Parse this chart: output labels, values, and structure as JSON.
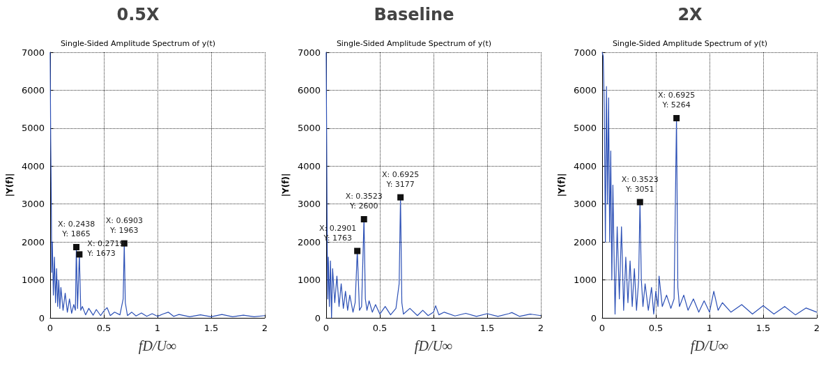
{
  "chart_data": [
    {
      "type": "line",
      "title": "0.5X",
      "subtitle": "Single-Sided Amplitude Spectrum of y(t)",
      "xlabel": "fD/U∞",
      "ylabel": "|Y(f)|",
      "xlim": [
        0,
        2
      ],
      "xticks": [
        0,
        0.5,
        1,
        1.5,
        2
      ],
      "ylim": [
        0,
        7000
      ],
      "yticks": [
        0,
        1000,
        2000,
        3000,
        4000,
        5000,
        6000,
        7000
      ],
      "grid": true,
      "marker": "none",
      "series": [
        {
          "color": "#2b4fb5",
          "x": [
            0,
            0.005,
            0.01,
            0.015,
            0.02,
            0.03,
            0.04,
            0.05,
            0.06,
            0.07,
            0.08,
            0.09,
            0.1,
            0.12,
            0.14,
            0.16,
            0.18,
            0.2,
            0.22,
            0.235,
            0.2438,
            0.255,
            0.2719,
            0.285,
            0.3,
            0.33,
            0.36,
            0.4,
            0.43,
            0.47,
            0.5,
            0.53,
            0.56,
            0.6,
            0.65,
            0.68,
            0.6903,
            0.7,
            0.72,
            0.76,
            0.8,
            0.85,
            0.9,
            0.95,
            1.0,
            1.05,
            1.1,
            1.15,
            1.2,
            1.3,
            1.4,
            1.5,
            1.6,
            1.7,
            1.8,
            1.9,
            2.0
          ],
          "values": [
            7000,
            4700,
            3300,
            1200,
            2000,
            600,
            1600,
            400,
            1300,
            300,
            1000,
            250,
            800,
            200,
            650,
            150,
            500,
            120,
            350,
            200,
            1865,
            250,
            1673,
            200,
            300,
            80,
            250,
            70,
            220,
            60,
            180,
            270,
            60,
            150,
            80,
            500,
            1963,
            400,
            60,
            150,
            50,
            130,
            40,
            110,
            40,
            100,
            150,
            40,
            90,
            30,
            80,
            30,
            90,
            30,
            70,
            30,
            60
          ]
        }
      ],
      "annotations": [
        {
          "text": "X: 0.2438\nY: 1865",
          "x": 0.2438,
          "y": 1865
        },
        {
          "text": "X: 0.2719\nY: 1673",
          "x": 0.2719,
          "y": 1673
        },
        {
          "text": "X: 0.6903\nY: 1963",
          "x": 0.6903,
          "y": 1963
        }
      ]
    },
    {
      "type": "line",
      "title": "Baseline",
      "subtitle": "Single-Sided Amplitude Spectrum of y(t)",
      "xlabel": "fD/U∞",
      "ylabel": "|Y(f)|",
      "xlim": [
        0,
        2
      ],
      "xticks": [
        0,
        0.5,
        1,
        1.5,
        2
      ],
      "ylim": [
        0,
        7000
      ],
      "yticks": [
        0,
        1000,
        2000,
        3000,
        4000,
        5000,
        6000,
        7000
      ],
      "grid": true,
      "marker": "none",
      "series": [
        {
          "color": "#2b4fb5",
          "x": [
            0,
            0.005,
            0.01,
            0.015,
            0.02,
            0.03,
            0.04,
            0.05,
            0.06,
            0.08,
            0.1,
            0.12,
            0.14,
            0.16,
            0.18,
            0.2,
            0.22,
            0.25,
            0.27,
            0.2901,
            0.31,
            0.33,
            0.3523,
            0.365,
            0.38,
            0.4,
            0.43,
            0.46,
            0.5,
            0.55,
            0.6,
            0.65,
            0.68,
            0.6925,
            0.705,
            0.72,
            0.78,
            0.85,
            0.9,
            0.95,
            1.0,
            1.02,
            1.05,
            1.1,
            1.2,
            1.3,
            1.4,
            1.5,
            1.6,
            1.7,
            1.73,
            1.8,
            1.9,
            2.0
          ],
          "values": [
            7000,
            4600,
            1800,
            500,
            1600,
            300,
            1500,
            0,
            1300,
            400,
            1100,
            300,
            900,
            250,
            700,
            200,
            600,
            150,
            400,
            1763,
            200,
            300,
            2600,
            500,
            200,
            450,
            150,
            350,
            100,
            300,
            80,
            250,
            900,
            3177,
            400,
            100,
            250,
            60,
            200,
            60,
            150,
            320,
            80,
            150,
            50,
            120,
            40,
            110,
            40,
            110,
            140,
            40,
            100,
            60
          ]
        }
      ],
      "annotations": [
        {
          "text": "X: 0.2901\nY: 1763",
          "x": 0.2901,
          "y": 1763
        },
        {
          "text": "X: 0.3523\nY: 2600",
          "x": 0.3523,
          "y": 2600
        },
        {
          "text": "X: 0.6925\nY: 3177",
          "x": 0.6925,
          "y": 3177
        }
      ]
    },
    {
      "type": "line",
      "title": "2X",
      "subtitle": "Single-Sided Amplitude Spectrum of y(t)",
      "xlabel": "fD/U∞",
      "ylabel": "|Y(f)|",
      "xlim": [
        0,
        2
      ],
      "xticks": [
        0,
        0.5,
        1,
        1.5,
        2
      ],
      "ylim": [
        0,
        7000
      ],
      "yticks": [
        0,
        1000,
        2000,
        3000,
        4000,
        5000,
        6000,
        7000
      ],
      "grid": true,
      "marker": "none",
      "series": [
        {
          "color": "#2b4fb5",
          "x": [
            0,
            0.01,
            0.02,
            0.03,
            0.04,
            0.05,
            0.06,
            0.07,
            0.08,
            0.09,
            0.1,
            0.12,
            0.14,
            0.16,
            0.18,
            0.2,
            0.22,
            0.24,
            0.26,
            0.28,
            0.3,
            0.32,
            0.34,
            0.3523,
            0.365,
            0.38,
            0.4,
            0.43,
            0.46,
            0.48,
            0.5,
            0.52,
            0.53,
            0.56,
            0.6,
            0.64,
            0.67,
            0.6925,
            0.705,
            0.72,
            0.76,
            0.8,
            0.85,
            0.9,
            0.95,
            1.0,
            1.04,
            1.08,
            1.12,
            1.2,
            1.3,
            1.4,
            1.5,
            1.6,
            1.7,
            1.8,
            1.9,
            2.0
          ],
          "values": [
            7000,
            6900,
            5500,
            2000,
            6100,
            3000,
            5800,
            2000,
            4400,
            1000,
            3500,
            100,
            2400,
            500,
            2400,
            200,
            1600,
            400,
            1500,
            300,
            1300,
            200,
            1000,
            3051,
            1000,
            300,
            900,
            200,
            800,
            100,
            700,
            300,
            1100,
            300,
            600,
            250,
            500,
            5264,
            800,
            300,
            600,
            200,
            500,
            150,
            450,
            150,
            700,
            200,
            400,
            150,
            350,
            100,
            320,
            100,
            300,
            80,
            260,
            150
          ]
        }
      ],
      "annotations": [
        {
          "text": "X: 0.3523\nY: 3051",
          "x": 0.3523,
          "y": 3051
        },
        {
          "text": "X: 0.6925\nY: 5264",
          "x": 0.6925,
          "y": 5264
        }
      ]
    }
  ]
}
